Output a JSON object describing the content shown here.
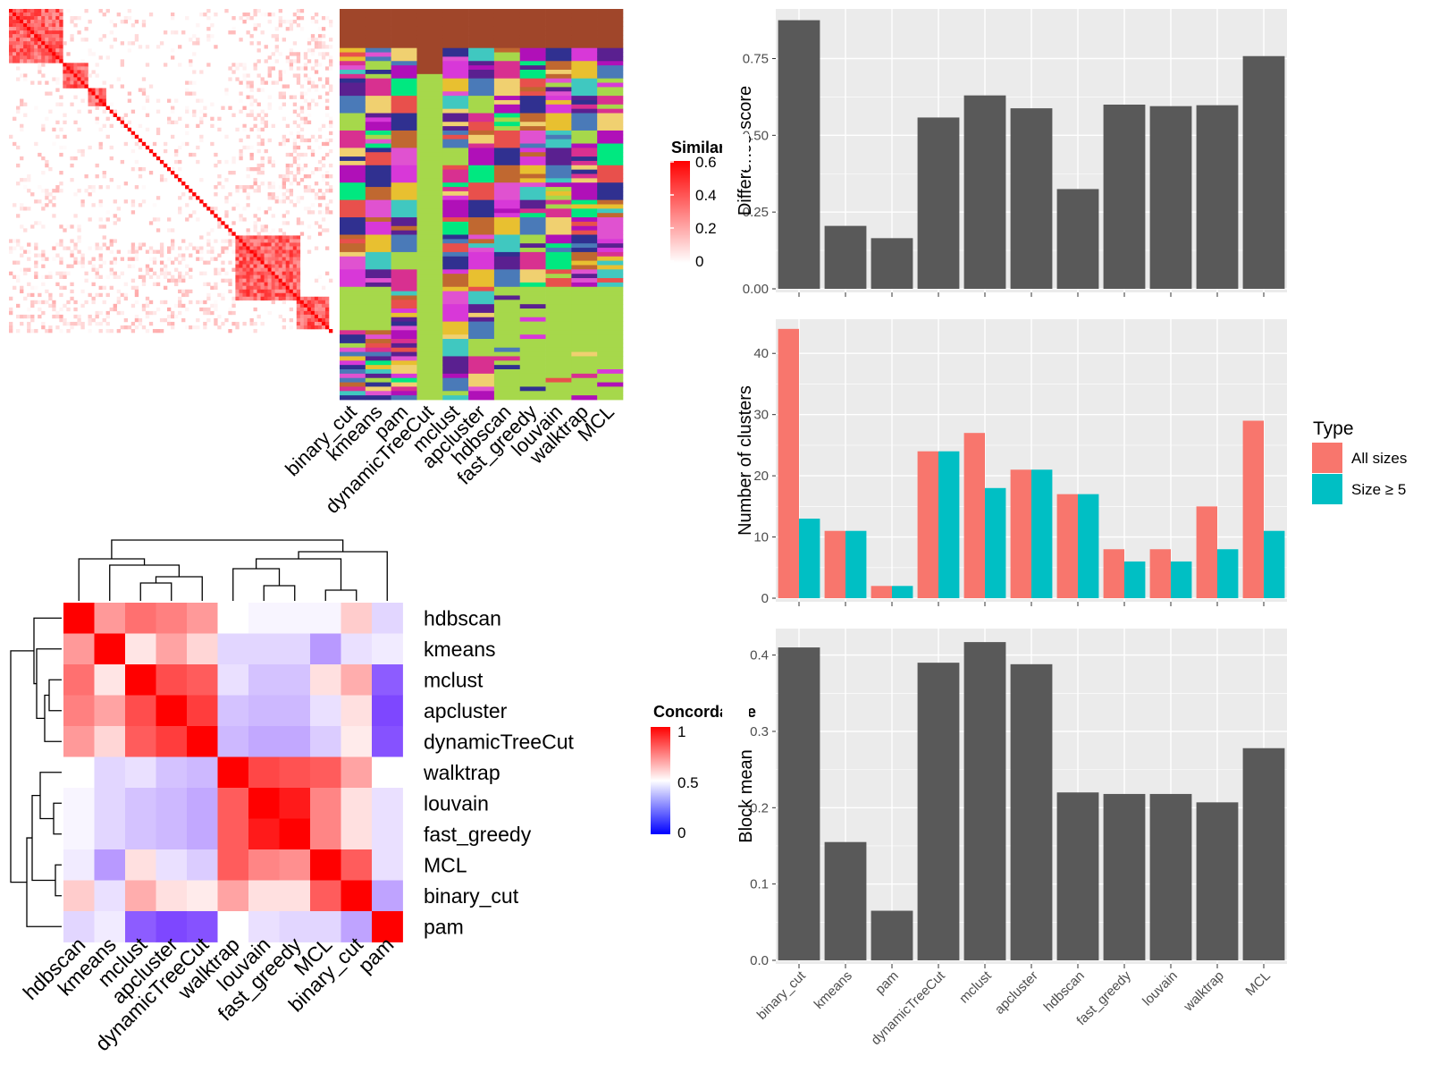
{
  "methods_bars": [
    "binary_cut",
    "kmeans",
    "pam",
    "dynamicTreeCut",
    "mclust",
    "apcluster",
    "hdbscan",
    "fast_greedy",
    "louvain",
    "walktrap",
    "MCL"
  ],
  "colors": {
    "bar": "#595959",
    "all_sizes": "#F8766D",
    "size_ge5": "#00BFC4",
    "panel_bg": "#EBEBEB",
    "grid": "#FFFFFF",
    "dendro": "#000000",
    "brown": "#A0462A",
    "green": "#A6D84B"
  },
  "similarity_legend": {
    "title": "Similarity",
    "ticks": [
      "0.6",
      "0.4",
      "0.2",
      "0"
    ]
  },
  "top_heatmap_labels": [
    "binary_cut",
    "kmeans",
    "pam",
    "dynamicTreeCut",
    "mclust",
    "apcluster",
    "hdbscan",
    "fast_greedy",
    "louvain",
    "walktrap",
    "MCL"
  ],
  "concordance": {
    "legend_title": "Concordance",
    "legend_ticks": [
      "1",
      "0.5",
      "0"
    ],
    "row_labels": [
      "hdbscan",
      "kmeans",
      "mclust",
      "apcluster",
      "dynamicTreeCut",
      "walktrap",
      "louvain",
      "fast_greedy",
      "MCL",
      "binary_cut",
      "pam"
    ],
    "col_labels": [
      "hdbscan",
      "kmeans",
      "mclust",
      "apcluster",
      "dynamicTreeCut",
      "walktrap",
      "louvain",
      "fast_greedy",
      "MCL",
      "binary_cut",
      "pam"
    ],
    "matrix": [
      [
        1.0,
        0.7,
        0.78,
        0.75,
        0.7,
        0.5,
        0.48,
        0.48,
        0.48,
        0.6,
        0.42
      ],
      [
        0.7,
        1.0,
        0.55,
        0.68,
        0.58,
        0.42,
        0.42,
        0.42,
        0.3,
        0.44,
        0.46
      ],
      [
        0.78,
        0.55,
        1.0,
        0.85,
        0.82,
        0.44,
        0.38,
        0.38,
        0.56,
        0.66,
        0.18
      ],
      [
        0.75,
        0.68,
        0.85,
        1.0,
        0.88,
        0.38,
        0.36,
        0.36,
        0.44,
        0.56,
        0.14
      ],
      [
        0.7,
        0.58,
        0.82,
        0.88,
        1.0,
        0.36,
        0.33,
        0.33,
        0.4,
        0.54,
        0.16
      ],
      [
        0.5,
        0.42,
        0.44,
        0.38,
        0.36,
        1.0,
        0.86,
        0.84,
        0.82,
        0.68,
        0.5
      ],
      [
        0.48,
        0.42,
        0.38,
        0.36,
        0.33,
        0.82,
        1.0,
        0.95,
        0.74,
        0.56,
        0.44
      ],
      [
        0.48,
        0.42,
        0.38,
        0.36,
        0.33,
        0.82,
        0.95,
        1.0,
        0.74,
        0.56,
        0.44
      ],
      [
        0.46,
        0.3,
        0.56,
        0.44,
        0.4,
        0.82,
        0.74,
        0.72,
        1.0,
        0.82,
        0.44
      ],
      [
        0.6,
        0.44,
        0.66,
        0.56,
        0.54,
        0.68,
        0.56,
        0.56,
        0.82,
        1.0,
        0.32
      ],
      [
        0.42,
        0.46,
        0.18,
        0.14,
        0.16,
        0.5,
        0.44,
        0.42,
        0.42,
        0.32,
        1.0
      ]
    ]
  },
  "chart_data": [
    {
      "type": "bar",
      "categories": [
        "binary_cut",
        "kmeans",
        "pam",
        "dynamicTreeCut",
        "mclust",
        "apcluster",
        "hdbscan",
        "fast_greedy",
        "louvain",
        "walktrap",
        "MCL"
      ],
      "values": [
        0.875,
        0.205,
        0.165,
        0.558,
        0.63,
        0.588,
        0.325,
        0.6,
        0.595,
        0.598,
        0.758
      ],
      "xlabel": "",
      "ylabel": "Difference score",
      "ylim": [
        0,
        0.9
      ],
      "yticks": [
        "0.00",
        "0.25",
        "0.50",
        "0.75"
      ],
      "grid": true
    },
    {
      "type": "bar",
      "categories": [
        "binary_cut",
        "kmeans",
        "pam",
        "dynamicTreeCut",
        "mclust",
        "apcluster",
        "hdbscan",
        "fast_greedy",
        "louvain",
        "walktrap",
        "MCL"
      ],
      "series": [
        {
          "name": "All sizes",
          "values": [
            44,
            11,
            2,
            24,
            27,
            21,
            17,
            8,
            8,
            15,
            29
          ]
        },
        {
          "name": "Size ≥ 5",
          "values": [
            13,
            11,
            2,
            24,
            18,
            21,
            17,
            6,
            6,
            8,
            11
          ]
        }
      ],
      "xlabel": "",
      "ylabel": "Number of clusters",
      "ylim": [
        0,
        45
      ],
      "yticks": [
        "0",
        "10",
        "20",
        "30",
        "40"
      ],
      "legend_title": "Type",
      "legend_position": "right",
      "grid": true
    },
    {
      "type": "bar",
      "categories": [
        "binary_cut",
        "kmeans",
        "pam",
        "dynamicTreeCut",
        "mclust",
        "apcluster",
        "hdbscan",
        "fast_greedy",
        "louvain",
        "walktrap",
        "MCL"
      ],
      "values": [
        0.41,
        0.155,
        0.065,
        0.39,
        0.417,
        0.388,
        0.22,
        0.218,
        0.218,
        0.207,
        0.278
      ],
      "xlabel": "",
      "ylabel": "Block mean",
      "ylim": [
        0,
        0.43
      ],
      "yticks": [
        "0.0",
        "0.1",
        "0.2",
        "0.3",
        "0.4"
      ],
      "grid": true
    }
  ]
}
